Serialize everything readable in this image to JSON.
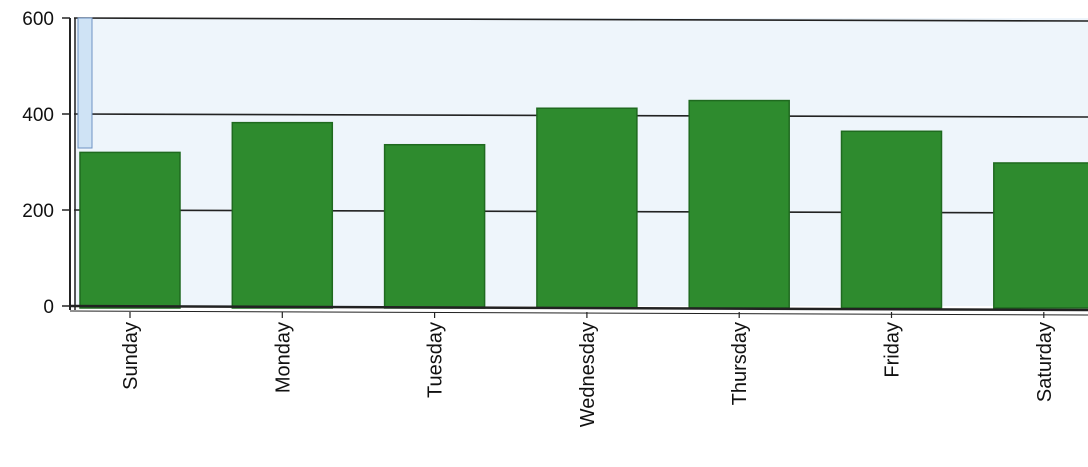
{
  "chart_data": {
    "type": "bar",
    "categories": [
      "Sunday",
      "Monday",
      "Tuesday",
      "Wednesday",
      "Thursday",
      "Friday",
      "Saturday"
    ],
    "values": [
      320,
      382,
      336,
      412,
      428,
      364,
      298
    ],
    "title": "",
    "xlabel": "",
    "ylabel": "",
    "ylim": [
      0,
      600
    ],
    "yticks": [
      0,
      200,
      400,
      600
    ],
    "grid": true,
    "bar_color": "#2e8b2e",
    "bar_edge_color": "#1f6a1f",
    "plot_background": "#eef5fb",
    "category_label_orientation": "vertical"
  }
}
